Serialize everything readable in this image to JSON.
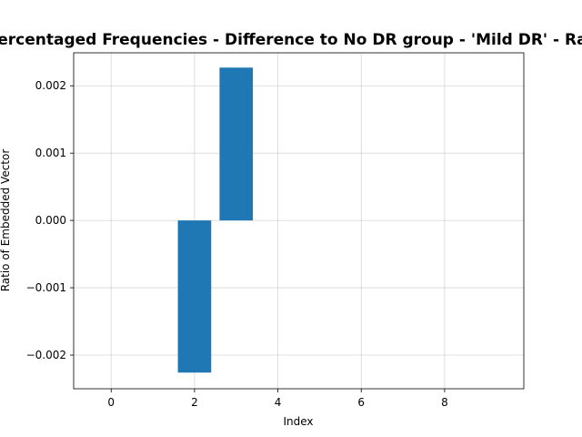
{
  "chart_data": {
    "type": "bar",
    "title": "Percentaged Frequencies - Difference to No DR group - 'Mild DR' - Ratio",
    "xlabel": "Index",
    "ylabel": "Ratio of Embedded Vector",
    "x": [
      0,
      1,
      2,
      3,
      4,
      5,
      6,
      7,
      8,
      9
    ],
    "values": [
      0,
      0,
      -0.00226,
      0.00227,
      0,
      0,
      0,
      0,
      0,
      0
    ],
    "xlim": [
      -0.9,
      9.9
    ],
    "ylim": [
      -0.0025,
      0.00249
    ],
    "xticks": [
      0,
      2,
      4,
      6,
      8
    ],
    "yticks": [
      -0.002,
      -0.001,
      0.0,
      0.001,
      0.002
    ],
    "ytick_labels": [
      "−0.002",
      "−0.001",
      "0.000",
      "0.001",
      "0.002"
    ],
    "bar_width": 0.8,
    "bar_color": "#1f77b4",
    "grid": true
  }
}
